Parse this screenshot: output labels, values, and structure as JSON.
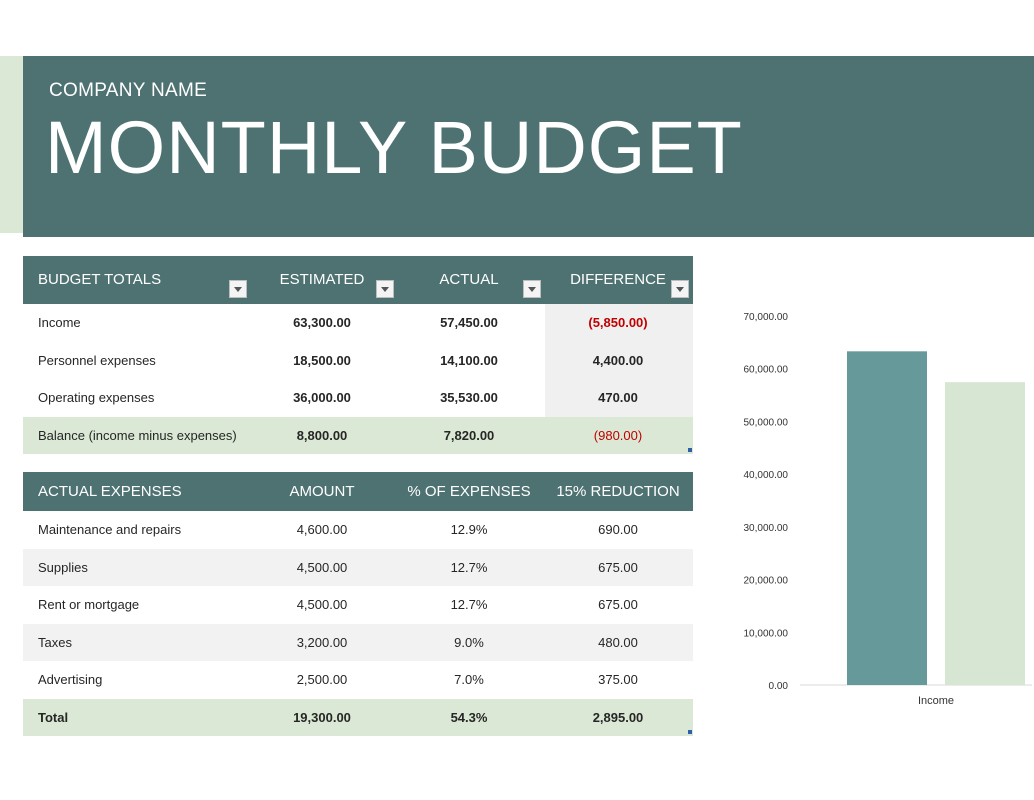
{
  "header": {
    "company": "COMPANY NAME",
    "title": "MONTHLY BUDGET"
  },
  "budget_totals": {
    "headers": [
      "BUDGET TOTALS",
      "ESTIMATED",
      "ACTUAL",
      "DIFFERENCE"
    ],
    "rows": [
      {
        "label": "Income",
        "estimated": "63,300.00",
        "actual": "57,450.00",
        "difference": "(5,850.00)"
      },
      {
        "label": "Personnel expenses",
        "estimated": "18,500.00",
        "actual": "14,100.00",
        "difference": "4,400.00"
      },
      {
        "label": "Operating expenses",
        "estimated": "36,000.00",
        "actual": "35,530.00",
        "difference": "470.00"
      },
      {
        "label": "Balance (income minus expenses)",
        "estimated": "8,800.00",
        "actual": "7,820.00",
        "difference": "(980.00)"
      }
    ]
  },
  "actual_expenses": {
    "headers": [
      "ACTUAL EXPENSES",
      "AMOUNT",
      "% OF EXPENSES",
      "15% REDUCTION"
    ],
    "rows": [
      {
        "label": "Maintenance and repairs",
        "amount": "4,600.00",
        "pct": "12.9%",
        "reduction": "690.00"
      },
      {
        "label": "Supplies",
        "amount": "4,500.00",
        "pct": "12.7%",
        "reduction": "675.00"
      },
      {
        "label": "Rent or mortgage",
        "amount": "4,500.00",
        "pct": "12.7%",
        "reduction": "675.00"
      },
      {
        "label": "Taxes",
        "amount": "3,200.00",
        "pct": "9.0%",
        "reduction": "480.00"
      },
      {
        "label": "Advertising",
        "amount": "2,500.00",
        "pct": "7.0%",
        "reduction": "375.00"
      },
      {
        "label": "Total",
        "amount": "19,300.00",
        "pct": "54.3%",
        "reduction": "2,895.00"
      }
    ]
  },
  "colors": {
    "header_bg": "#4e7272",
    "accent_light": "#dbe8d5",
    "bar_estimated": "#66999a",
    "bar_actual": "#d7e6d3",
    "negative": "#c00000"
  },
  "chart_data": {
    "type": "bar",
    "categories": [
      "Income"
    ],
    "series": [
      {
        "values": [
          63300
        ]
      },
      {
        "values": [
          57450
        ]
      }
    ],
    "ylim": [
      0,
      70000
    ],
    "yticks": [
      "0.00",
      "10,000.00",
      "20,000.00",
      "30,000.00",
      "40,000.00",
      "50,000.00",
      "60,000.00",
      "70,000.00"
    ],
    "grid": false
  }
}
